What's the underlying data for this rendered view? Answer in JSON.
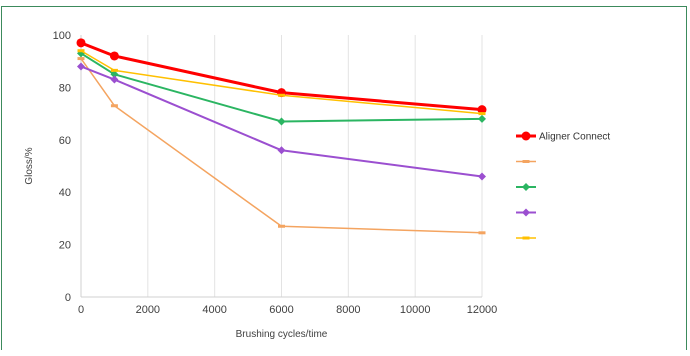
{
  "chart_data": {
    "type": "line",
    "title": "",
    "xlabel": "Brushing cycles/time",
    "ylabel": "Gloss/%",
    "xlim": [
      0,
      12000
    ],
    "ylim": [
      0,
      100
    ],
    "xticks": [
      0,
      2000,
      4000,
      6000,
      8000,
      10000,
      12000
    ],
    "yticks": [
      0,
      20,
      40,
      60,
      80,
      100
    ],
    "grid": "vertical",
    "legend_position": "right",
    "series": [
      {
        "name": "Aligner Connect",
        "color": "#ff0000",
        "marker": "circle",
        "x": [
          0,
          1000,
          6000,
          12000
        ],
        "y": [
          97,
          92,
          78,
          71.5
        ]
      },
      {
        "name": "",
        "color": "#f4a460",
        "marker": "dash",
        "x": [
          0,
          1000,
          6000,
          12000
        ],
        "y": [
          91,
          73,
          27,
          24.5
        ]
      },
      {
        "name": "",
        "color": "#2bb562",
        "marker": "diamond",
        "x": [
          0,
          1000,
          6000,
          12000
        ],
        "y": [
          93,
          85,
          67,
          68
        ]
      },
      {
        "name": "",
        "color": "#9b4fd0",
        "marker": "diamond",
        "x": [
          0,
          1000,
          6000,
          12000
        ],
        "y": [
          88,
          83,
          56,
          46
        ]
      },
      {
        "name": "",
        "color": "#ffc000",
        "marker": "dash",
        "x": [
          0,
          1000,
          6000,
          12000
        ],
        "y": [
          94,
          86.5,
          77,
          70
        ]
      }
    ]
  }
}
